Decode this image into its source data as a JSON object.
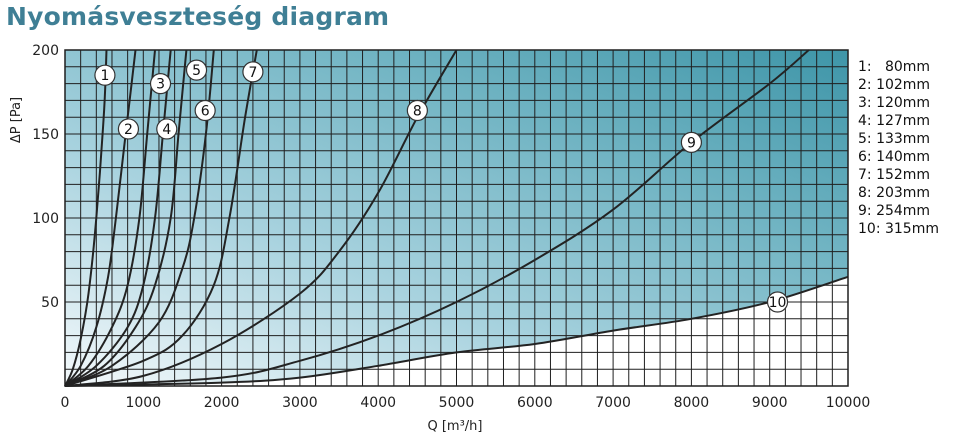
{
  "title": "Nyomásveszteség diagram",
  "chart_data": {
    "type": "line",
    "title": "Nyomásveszteség diagram",
    "xlabel": "Q [m³/h]",
    "ylabel": "ΔP [Pa]",
    "xlim": [
      0,
      10000
    ],
    "ylim": [
      0,
      200
    ],
    "x_ticks": [
      "0",
      "1000",
      "2000",
      "3000",
      "4000",
      "5000",
      "6000",
      "7000",
      "8000",
      "9000",
      "10000"
    ],
    "y_ticks": [
      "50",
      "100",
      "150",
      "200"
    ],
    "grid": true,
    "shaded_region": "teal gradient between curve 10 and the top-left",
    "legend_position": "right",
    "legend": [
      "1:   80mm",
      "2: 102mm",
      "3: 120mm",
      "4: 127mm",
      "5: 133mm",
      "6: 140mm",
      "7: 152mm",
      "8: 203mm",
      "9: 254mm",
      "10: 315mm"
    ],
    "series": [
      {
        "label": "1",
        "points": [
          [
            0,
            0
          ],
          [
            100,
            10
          ],
          [
            200,
            28
          ],
          [
            300,
            55
          ],
          [
            400,
            100
          ],
          [
            500,
            165
          ],
          [
            530,
            200
          ]
        ],
        "label_at": [
          510,
          185
        ]
      },
      {
        "label": "2",
        "points": [
          [
            0,
            0
          ],
          [
            200,
            12
          ],
          [
            400,
            35
          ],
          [
            550,
            65
          ],
          [
            650,
            100
          ],
          [
            750,
            140
          ],
          [
            850,
            180
          ],
          [
            900,
            200
          ]
        ],
        "label_at": [
          810,
          153
        ]
      },
      {
        "label": "3",
        "points": [
          [
            0,
            0
          ],
          [
            300,
            12
          ],
          [
            600,
            35
          ],
          [
            800,
            60
          ],
          [
            950,
            100
          ],
          [
            1050,
            150
          ],
          [
            1150,
            200
          ]
        ],
        "label_at": [
          1220,
          180
        ]
      },
      {
        "label": "4",
        "points": [
          [
            0,
            0
          ],
          [
            400,
            12
          ],
          [
            800,
            35
          ],
          [
            1000,
            60
          ],
          [
            1150,
            100
          ],
          [
            1250,
            150
          ],
          [
            1350,
            200
          ]
        ],
        "label_at": [
          1300,
          153
        ]
      },
      {
        "label": "5",
        "points": [
          [
            0,
            0
          ],
          [
            500,
            12
          ],
          [
            900,
            35
          ],
          [
            1150,
            60
          ],
          [
            1350,
            100
          ],
          [
            1450,
            150
          ],
          [
            1550,
            200
          ]
        ],
        "label_at": [
          1680,
          188
        ]
      },
      {
        "label": "6",
        "points": [
          [
            0,
            0
          ],
          [
            600,
            12
          ],
          [
            1200,
            38
          ],
          [
            1500,
            70
          ],
          [
            1650,
            100
          ],
          [
            1800,
            150
          ],
          [
            1900,
            200
          ]
        ],
        "label_at": [
          1790,
          164
        ]
      },
      {
        "label": "7",
        "points": [
          [
            0,
            0
          ],
          [
            1000,
            15
          ],
          [
            1500,
            30
          ],
          [
            1900,
            60
          ],
          [
            2100,
            100
          ],
          [
            2300,
            160
          ],
          [
            2450,
            200
          ]
        ],
        "label_at": [
          2400,
          187
        ]
      },
      {
        "label": "8",
        "points": [
          [
            0,
            0
          ],
          [
            1000,
            6
          ],
          [
            2000,
            25
          ],
          [
            3000,
            55
          ],
          [
            3500,
            80
          ],
          [
            4000,
            115
          ],
          [
            4500,
            160
          ],
          [
            5000,
            200
          ]
        ],
        "label_at": [
          4500,
          164
        ]
      },
      {
        "label": "9",
        "points": [
          [
            0,
            0
          ],
          [
            2000,
            5
          ],
          [
            3000,
            15
          ],
          [
            4000,
            30
          ],
          [
            5000,
            50
          ],
          [
            6000,
            75
          ],
          [
            7000,
            105
          ],
          [
            8000,
            145
          ],
          [
            9000,
            180
          ],
          [
            9500,
            200
          ]
        ],
        "label_at": [
          8000,
          145
        ]
      },
      {
        "label": "10",
        "points": [
          [
            0,
            0
          ],
          [
            2000,
            2
          ],
          [
            3000,
            5
          ],
          [
            4000,
            12
          ],
          [
            5000,
            20
          ],
          [
            6000,
            25
          ],
          [
            7000,
            33
          ],
          [
            8000,
            40
          ],
          [
            9000,
            50
          ],
          [
            10000,
            65
          ]
        ],
        "label_at": [
          9100,
          50
        ]
      }
    ]
  }
}
